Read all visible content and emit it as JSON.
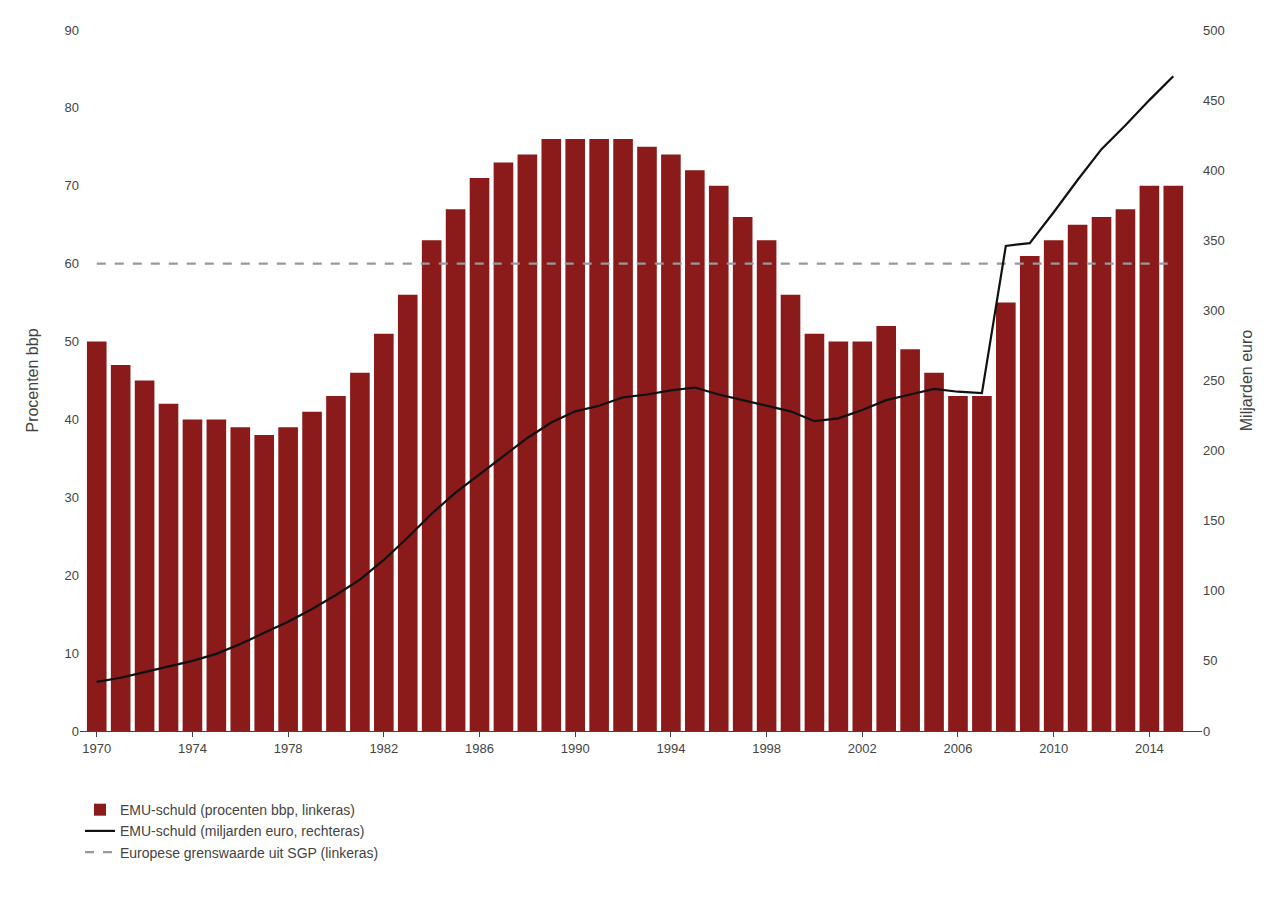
{
  "chart_data": {
    "type": "bar",
    "x": [
      1970,
      1971,
      1972,
      1973,
      1974,
      1975,
      1976,
      1977,
      1978,
      1979,
      1980,
      1981,
      1982,
      1983,
      1984,
      1985,
      1986,
      1987,
      1988,
      1989,
      1990,
      1991,
      1992,
      1993,
      1994,
      1995,
      1996,
      1997,
      1998,
      1999,
      2000,
      2001,
      2002,
      2003,
      2004,
      2005,
      2006,
      2007,
      2008,
      2009,
      2010,
      2011,
      2012,
      2013,
      2014,
      2015
    ],
    "series": [
      {
        "name": "EMU-schuld (procenten bbp, linkeras)",
        "type": "bar",
        "color": "#8B1A1A",
        "values": [
          50,
          47,
          45,
          42,
          40,
          40,
          39,
          38,
          39,
          41,
          43,
          46,
          51,
          56,
          63,
          67,
          71,
          73,
          74,
          76,
          76,
          76,
          76,
          75,
          74,
          72,
          70,
          66,
          63,
          56,
          51,
          50,
          50,
          52,
          49,
          46,
          43,
          43,
          55,
          61,
          63,
          65,
          66,
          67,
          70,
          70
        ]
      },
      {
        "name": "EMU-schuld (miljarden euro, rechteras)",
        "type": "line",
        "color": "#111111",
        "axis": "y2",
        "values": [
          35,
          38,
          42,
          46,
          50,
          55,
          62,
          70,
          78,
          87,
          97,
          108,
          122,
          138,
          155,
          170,
          183,
          196,
          209,
          220,
          228,
          232,
          238,
          240,
          243,
          245,
          240,
          236,
          232,
          228,
          221,
          223,
          229,
          236,
          240,
          244,
          242,
          241,
          346,
          348,
          370,
          393,
          415,
          432,
          450,
          467
        ]
      },
      {
        "name": "Europese grenswaarde uit SGP (linkeras)",
        "type": "line",
        "line_style": "dashed",
        "color": "#999999",
        "values": [
          60,
          60,
          60,
          60,
          60,
          60,
          60,
          60,
          60,
          60,
          60,
          60,
          60,
          60,
          60,
          60,
          60,
          60,
          60,
          60,
          60,
          60,
          60,
          60,
          60,
          60,
          60,
          60,
          60,
          60,
          60,
          60,
          60,
          60,
          60,
          60,
          60,
          60,
          60,
          60,
          60,
          60,
          60,
          60,
          60,
          60
        ]
      }
    ],
    "xlim": [
      1969.3,
      2016.2
    ],
    "xticks": [
      1970,
      1974,
      1978,
      1982,
      1986,
      1990,
      1994,
      1998,
      2002,
      2006,
      2010,
      2014
    ],
    "ylabel": "Procenten bbp",
    "ylim": [
      0,
      90
    ],
    "yticks": [
      0,
      10,
      20,
      30,
      40,
      50,
      60,
      70,
      80,
      90
    ],
    "y2label": "Miljarden euro",
    "y2lim": [
      0,
      500
    ],
    "y2ticks": [
      0,
      50,
      100,
      150,
      200,
      250,
      300,
      350,
      400,
      450,
      500
    ],
    "legend": "bottom",
    "grid": false
  }
}
